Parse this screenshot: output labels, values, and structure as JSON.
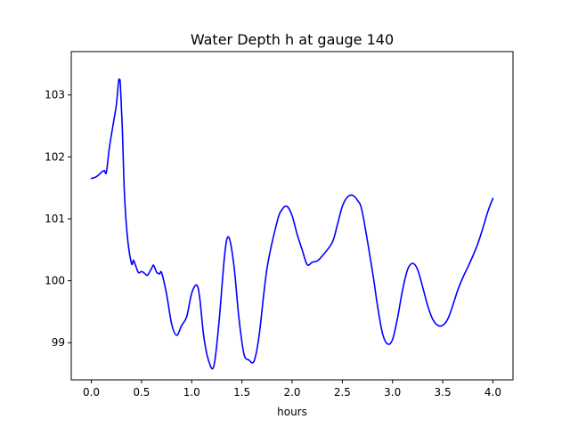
{
  "chart_data": {
    "type": "line",
    "title": "Water Depth h at gauge 140",
    "xlabel": "hours",
    "ylabel": "",
    "xlim": [
      -0.2,
      4.2
    ],
    "ylim": [
      98.4,
      103.7
    ],
    "xticks": [
      0.0,
      0.5,
      1.0,
      1.5,
      2.0,
      2.5,
      3.0,
      3.5,
      4.0
    ],
    "xtick_labels": [
      "0.0",
      "0.5",
      "1.0",
      "1.5",
      "2.0",
      "2.5",
      "3.0",
      "3.5",
      "4.0"
    ],
    "yticks": [
      99,
      100,
      101,
      102,
      103
    ],
    "ytick_labels": [
      "99",
      "100",
      "101",
      "102",
      "103"
    ],
    "grid": false,
    "legend": "none",
    "series": [
      {
        "color": "#0000ff",
        "x": [
          0.0,
          0.05,
          0.1,
          0.13,
          0.15,
          0.18,
          0.22,
          0.25,
          0.27,
          0.28,
          0.29,
          0.31,
          0.33,
          0.36,
          0.4,
          0.42,
          0.44,
          0.47,
          0.5,
          0.53,
          0.56,
          0.6,
          0.62,
          0.65,
          0.68,
          0.7,
          0.75,
          0.8,
          0.85,
          0.9,
          0.95,
          1.0,
          1.05,
          1.08,
          1.12,
          1.17,
          1.22,
          1.27,
          1.33,
          1.37,
          1.42,
          1.47,
          1.52,
          1.57,
          1.62,
          1.67,
          1.75,
          1.85,
          1.9,
          1.95,
          2.0,
          2.05,
          2.1,
          2.15,
          2.2,
          2.25,
          2.3,
          2.4,
          2.45,
          2.5,
          2.55,
          2.6,
          2.65,
          2.7,
          2.8,
          2.85,
          2.9,
          2.95,
          3.0,
          3.05,
          3.1,
          3.15,
          3.2,
          3.25,
          3.3,
          3.35,
          3.4,
          3.45,
          3.5,
          3.55,
          3.6,
          3.65,
          3.7,
          3.75,
          3.8,
          3.85,
          3.9,
          3.95,
          4.0
        ],
        "values": [
          101.65,
          101.68,
          101.75,
          101.78,
          101.75,
          102.15,
          102.55,
          102.85,
          103.2,
          103.25,
          103.15,
          102.4,
          101.4,
          100.7,
          100.28,
          100.33,
          100.25,
          100.13,
          100.15,
          100.12,
          100.09,
          100.2,
          100.25,
          100.14,
          100.11,
          100.13,
          99.78,
          99.3,
          99.12,
          99.28,
          99.42,
          99.8,
          99.93,
          99.72,
          99.1,
          98.7,
          98.62,
          99.3,
          100.45,
          100.7,
          100.25,
          99.4,
          98.82,
          98.72,
          98.7,
          99.1,
          100.2,
          100.95,
          101.15,
          101.2,
          101.05,
          100.75,
          100.5,
          100.26,
          100.3,
          100.32,
          100.4,
          100.62,
          100.9,
          101.2,
          101.35,
          101.38,
          101.3,
          101.1,
          100.15,
          99.6,
          99.15,
          98.98,
          99.05,
          99.4,
          99.85,
          100.18,
          100.28,
          100.18,
          99.9,
          99.6,
          99.38,
          99.28,
          99.28,
          99.38,
          99.6,
          99.85,
          100.05,
          100.22,
          100.4,
          100.6,
          100.85,
          101.12,
          101.33
        ]
      }
    ]
  }
}
